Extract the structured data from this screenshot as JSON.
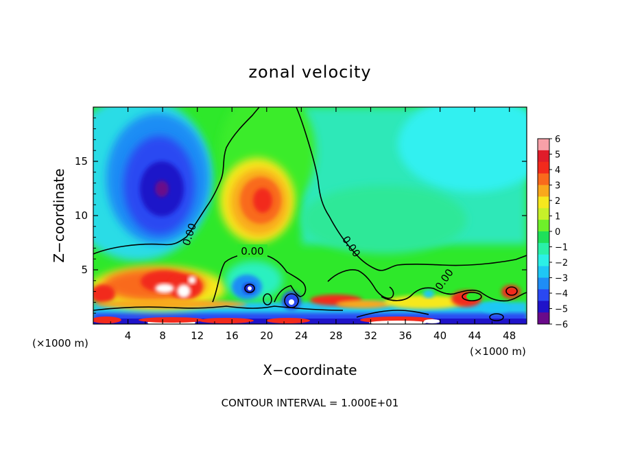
{
  "chart_data": {
    "type": "heatmap",
    "title": "zonal velocity",
    "xlabel": "X−coordinate",
    "ylabel": "Z−coordinate",
    "x_unit_left": "(×1000 m)",
    "x_unit_right": "(×1000 m)",
    "xlim": [
      0,
      50
    ],
    "ylim": [
      0,
      20
    ],
    "x_ticks": [
      4,
      8,
      12,
      16,
      20,
      24,
      28,
      32,
      36,
      40,
      44,
      48
    ],
    "y_ticks": [
      5,
      10,
      15
    ],
    "contour_note": "CONTOUR INTERVAL = 1.000E+01",
    "contour_label": "0.00",
    "colorbar": {
      "ticks": [
        "6",
        "5",
        "4",
        "3",
        "2",
        "1",
        "0",
        "−1",
        "−2",
        "−3",
        "−4",
        "−5",
        "−6"
      ],
      "range": [
        -6,
        6
      ],
      "colors": [
        "#6a0a8a",
        "#1f13c9",
        "#2a48f2",
        "#1f8df5",
        "#1fc7f5",
        "#2cf0e6",
        "#2af0a8",
        "#1ee05a",
        "#6ef02a",
        "#c6f02a",
        "#f6e81e",
        "#f9a81c",
        "#f96a1c",
        "#f22a1c",
        "#e01c2a",
        "#f8a0a8"
      ]
    },
    "features": [
      {
        "kind": "min",
        "x": 8,
        "z": 13,
        "value": -5.5
      },
      {
        "kind": "max",
        "x": 19.5,
        "z": 11.5,
        "value": 4.5
      },
      {
        "kind": "max",
        "x": 8,
        "z": 3.5,
        "value": 6
      },
      {
        "kind": "max",
        "x": 10,
        "z": 3,
        "value": 5
      },
      {
        "kind": "min",
        "x": 18,
        "z": 3,
        "value": -5
      },
      {
        "kind": "min",
        "x": 22.5,
        "z": 2,
        "value": -4.5
      }
    ]
  }
}
